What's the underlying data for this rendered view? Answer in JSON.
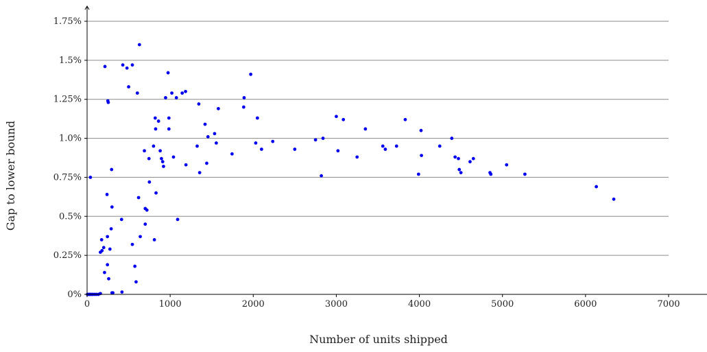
{
  "chart_data": {
    "type": "scatter",
    "xlabel": "Number of units shipped",
    "ylabel": "Gap to lower bound",
    "xlim": [
      0,
      7000
    ],
    "ylim": [
      0,
      1.75
    ],
    "x_ticks": [
      0,
      1000,
      2000,
      3000,
      4000,
      5000,
      6000,
      7000
    ],
    "x_tick_labels": [
      "0",
      "1000",
      "2000",
      "3000",
      "4000",
      "5000",
      "6000",
      "7000"
    ],
    "y_ticks": [
      0,
      0.25,
      0.5,
      0.75,
      1.0,
      1.25,
      1.5,
      1.75
    ],
    "y_tick_labels": [
      "0%",
      "0.25%",
      "0.5%",
      "0.75%",
      "1.0%",
      "1.25%",
      "1.5%",
      "1.75%"
    ],
    "grid": "horizontal",
    "point_color": "#0000ee",
    "series": [
      {
        "points": [
          [
            5,
            0.0
          ],
          [
            20,
            0.0
          ],
          [
            30,
            0.0
          ],
          [
            40,
            0.0
          ],
          [
            55,
            0.0
          ],
          [
            70,
            0.0
          ],
          [
            90,
            0.0
          ],
          [
            110,
            0.0
          ],
          [
            135,
            0.0
          ],
          [
            160,
            0.005
          ],
          [
            40,
            0.75
          ],
          [
            160,
            0.27
          ],
          [
            175,
            0.35
          ],
          [
            180,
            0.28
          ],
          [
            200,
            0.3
          ],
          [
            210,
            0.14
          ],
          [
            215,
            1.46
          ],
          [
            240,
            0.64
          ],
          [
            245,
            0.37
          ],
          [
            245,
            0.19
          ],
          [
            250,
            1.24
          ],
          [
            255,
            1.23
          ],
          [
            260,
            0.1
          ],
          [
            275,
            0.29
          ],
          [
            290,
            0.42
          ],
          [
            295,
            0.8
          ],
          [
            300,
            0.56
          ],
          [
            300,
            0.01
          ],
          [
            310,
            0.01
          ],
          [
            415,
            0.48
          ],
          [
            420,
            0.015
          ],
          [
            430,
            1.47
          ],
          [
            480,
            1.45
          ],
          [
            500,
            1.33
          ],
          [
            545,
            1.47
          ],
          [
            545,
            0.32
          ],
          [
            575,
            0.18
          ],
          [
            590,
            0.08
          ],
          [
            605,
            1.29
          ],
          [
            620,
            0.62
          ],
          [
            630,
            1.6
          ],
          [
            640,
            0.37
          ],
          [
            690,
            0.92
          ],
          [
            700,
            0.55
          ],
          [
            700,
            0.45
          ],
          [
            720,
            0.54
          ],
          [
            745,
            0.87
          ],
          [
            750,
            0.72
          ],
          [
            800,
            0.95
          ],
          [
            810,
            0.35
          ],
          [
            820,
            1.13
          ],
          [
            825,
            1.06
          ],
          [
            830,
            0.65
          ],
          [
            860,
            1.11
          ],
          [
            880,
            0.92
          ],
          [
            895,
            0.87
          ],
          [
            910,
            0.85
          ],
          [
            920,
            0.82
          ],
          [
            945,
            1.26
          ],
          [
            975,
            1.42
          ],
          [
            985,
            1.13
          ],
          [
            985,
            1.06
          ],
          [
            1020,
            1.29
          ],
          [
            1040,
            0.88
          ],
          [
            1075,
            1.26
          ],
          [
            1090,
            0.48
          ],
          [
            1145,
            1.29
          ],
          [
            1185,
            1.3
          ],
          [
            1190,
            0.83
          ],
          [
            1325,
            0.95
          ],
          [
            1345,
            1.22
          ],
          [
            1355,
            0.78
          ],
          [
            1420,
            1.09
          ],
          [
            1440,
            0.84
          ],
          [
            1455,
            1.01
          ],
          [
            1535,
            1.03
          ],
          [
            1555,
            0.97
          ],
          [
            1580,
            1.19
          ],
          [
            1745,
            0.9
          ],
          [
            1885,
            1.2
          ],
          [
            1890,
            1.26
          ],
          [
            1970,
            1.41
          ],
          [
            2030,
            0.97
          ],
          [
            2050,
            1.13
          ],
          [
            2100,
            0.93
          ],
          [
            2235,
            0.98
          ],
          [
            2500,
            0.93
          ],
          [
            2750,
            0.99
          ],
          [
            2820,
            0.76
          ],
          [
            2840,
            1.0
          ],
          [
            3000,
            1.14
          ],
          [
            3020,
            0.92
          ],
          [
            3085,
            1.12
          ],
          [
            3250,
            0.88
          ],
          [
            3350,
            1.06
          ],
          [
            3560,
            0.95
          ],
          [
            3590,
            0.93
          ],
          [
            3725,
            0.95
          ],
          [
            3830,
            1.12
          ],
          [
            3990,
            0.77
          ],
          [
            4020,
            1.05
          ],
          [
            4025,
            0.89
          ],
          [
            4245,
            0.95
          ],
          [
            4390,
            1.0
          ],
          [
            4430,
            0.88
          ],
          [
            4470,
            0.87
          ],
          [
            4480,
            0.8
          ],
          [
            4500,
            0.78
          ],
          [
            4610,
            0.85
          ],
          [
            4650,
            0.87
          ],
          [
            4850,
            0.78
          ],
          [
            4860,
            0.77
          ],
          [
            5050,
            0.83
          ],
          [
            5270,
            0.77
          ],
          [
            6130,
            0.69
          ],
          [
            6340,
            0.61
          ]
        ]
      }
    ]
  }
}
